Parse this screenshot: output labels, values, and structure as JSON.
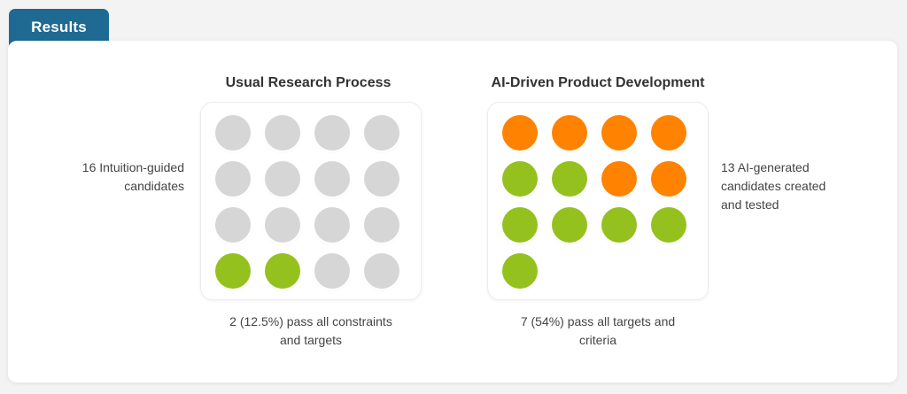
{
  "tab": {
    "label": "Results"
  },
  "colors": {
    "tab": "#1f6a92",
    "pass": "#95c11f",
    "ai_generated": "#ff8200",
    "neutral": "#d6d6d6"
  },
  "usual": {
    "heading": "Usual Research Process",
    "side_label_lines": [
      "16 Intuition-guided",
      "candidates"
    ],
    "caption_lines": [
      "2 (12.5%) pass all constraints",
      "and targets"
    ],
    "total": 16,
    "passing": 2,
    "dots": [
      "neutral",
      "neutral",
      "neutral",
      "neutral",
      "neutral",
      "neutral",
      "neutral",
      "neutral",
      "neutral",
      "neutral",
      "neutral",
      "neutral",
      "pass",
      "pass",
      "neutral",
      "neutral"
    ]
  },
  "ai": {
    "heading": "AI-Driven Product Development",
    "side_label_lines": [
      "13 AI-generated",
      "candidates created",
      "and tested"
    ],
    "caption_lines": [
      "7 (54%) pass all targets and",
      "criteria"
    ],
    "total": 13,
    "passing": 7,
    "dots": [
      "ai_generated",
      "ai_generated",
      "ai_generated",
      "ai_generated",
      "pass",
      "pass",
      "ai_generated",
      "ai_generated",
      "pass",
      "pass",
      "pass",
      "pass",
      "pass"
    ]
  }
}
